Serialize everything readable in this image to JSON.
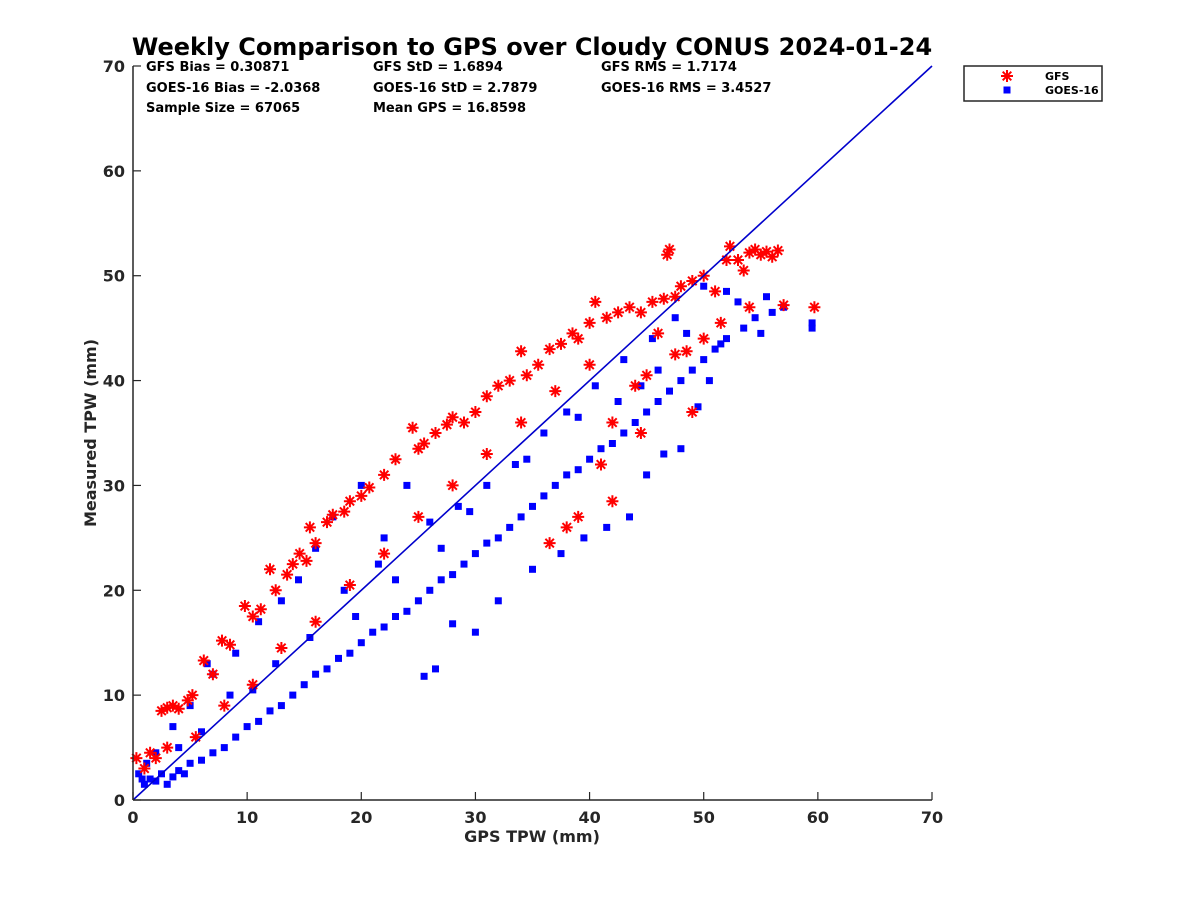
{
  "chart_data": {
    "type": "scatter",
    "title": "Weekly Comparison to GPS over Cloudy CONUS 2024-01-24",
    "xlabel": "GPS TPW (mm)",
    "ylabel": "Measured TPW (mm)",
    "xlim": [
      0,
      70
    ],
    "ylim": [
      0,
      70
    ],
    "xticks": [
      0,
      10,
      20,
      30,
      40,
      50,
      60,
      70
    ],
    "yticks": [
      0,
      10,
      20,
      30,
      40,
      50,
      60,
      70
    ],
    "x_tick_labels": [
      "0",
      "10",
      "20",
      "30",
      "40",
      "50",
      "60",
      "70"
    ],
    "y_tick_labels": [
      "0",
      "10",
      "20",
      "30",
      "40",
      "50",
      "60",
      "70"
    ],
    "grid": false,
    "legend_position": "outside top-right",
    "reference_line": {
      "type": "1:1",
      "x": [
        0,
        70
      ],
      "y": [
        0,
        70
      ],
      "color": "#0000CC"
    },
    "stats": [
      {
        "label": "GFS Bias = 0.30871"
      },
      {
        "label": "GFS StD = 1.6894"
      },
      {
        "label": "GFS RMS = 1.7174"
      },
      {
        "label": "GOES-16 Bias = -2.0368"
      },
      {
        "label": "GOES-16 StD = 2.7879"
      },
      {
        "label": "GOES-16 RMS = 3.4527"
      },
      {
        "label": "Sample Size = 67065"
      },
      {
        "label": "Mean GPS = 16.8598"
      }
    ],
    "series": [
      {
        "name": "GFS",
        "marker": "asterisk",
        "color": "#FF0000",
        "points": [
          [
            0.3,
            4.0
          ],
          [
            1.5,
            4.5
          ],
          [
            2.5,
            8.5
          ],
          [
            3.0,
            8.8
          ],
          [
            3.5,
            9.0
          ],
          [
            4.0,
            8.7
          ],
          [
            4.8,
            9.5
          ],
          [
            5.2,
            10.0
          ],
          [
            6.2,
            13.3
          ],
          [
            7.0,
            12.0
          ],
          [
            7.8,
            15.2
          ],
          [
            8.5,
            14.8
          ],
          [
            9.8,
            18.5
          ],
          [
            10.5,
            17.5
          ],
          [
            11.2,
            18.2
          ],
          [
            12.0,
            22.0
          ],
          [
            12.5,
            20.0
          ],
          [
            13.5,
            21.5
          ],
          [
            14.0,
            22.5
          ],
          [
            14.6,
            23.5
          ],
          [
            15.2,
            22.8
          ],
          [
            15.5,
            26.0
          ],
          [
            16.0,
            24.5
          ],
          [
            17.0,
            26.5
          ],
          [
            17.5,
            27.2
          ],
          [
            18.5,
            27.5
          ],
          [
            19.0,
            28.5
          ],
          [
            20.0,
            29.0
          ],
          [
            20.7,
            29.8
          ],
          [
            22.0,
            31.0
          ],
          [
            23.0,
            32.5
          ],
          [
            24.5,
            35.5
          ],
          [
            25.0,
            33.5
          ],
          [
            25.5,
            34.0
          ],
          [
            26.5,
            35.0
          ],
          [
            27.5,
            35.8
          ],
          [
            28.0,
            36.5
          ],
          [
            29.0,
            36.0
          ],
          [
            30.0,
            37.0
          ],
          [
            31.0,
            38.5
          ],
          [
            32.0,
            39.5
          ],
          [
            33.0,
            40.0
          ],
          [
            34.0,
            42.8
          ],
          [
            34.5,
            40.5
          ],
          [
            35.5,
            41.5
          ],
          [
            36.5,
            43.0
          ],
          [
            37.5,
            43.5
          ],
          [
            38.5,
            44.5
          ],
          [
            39.0,
            44.0
          ],
          [
            40.0,
            45.5
          ],
          [
            40.5,
            47.5
          ],
          [
            41.5,
            46.0
          ],
          [
            42.5,
            46.5
          ],
          [
            43.5,
            47.0
          ],
          [
            44.5,
            46.5
          ],
          [
            45.5,
            47.5
          ],
          [
            46.5,
            47.8
          ],
          [
            47.0,
            52.5
          ],
          [
            46.8,
            52.0
          ],
          [
            47.5,
            48.0
          ],
          [
            48.0,
            49.0
          ],
          [
            49.0,
            49.5
          ],
          [
            50.0,
            50.0
          ],
          [
            51.0,
            48.5
          ],
          [
            52.0,
            51.5
          ],
          [
            52.3,
            52.8
          ],
          [
            53.0,
            51.5
          ],
          [
            53.5,
            50.5
          ],
          [
            54.0,
            52.2
          ],
          [
            54.5,
            52.5
          ],
          [
            55.0,
            52.0
          ],
          [
            55.5,
            52.3
          ],
          [
            56.0,
            51.8
          ],
          [
            56.5,
            52.4
          ],
          [
            54.0,
            47.0
          ],
          [
            57.0,
            47.2
          ],
          [
            59.7,
            47.0
          ],
          [
            49.0,
            37.0
          ],
          [
            36.5,
            24.5
          ],
          [
            38.0,
            26.0
          ],
          [
            39.0,
            27.0
          ],
          [
            42.0,
            28.5
          ],
          [
            41.0,
            32.0
          ],
          [
            44.5,
            35.0
          ],
          [
            47.5,
            42.5
          ],
          [
            48.5,
            42.8
          ],
          [
            46.0,
            44.5
          ],
          [
            50.0,
            44.0
          ],
          [
            51.5,
            45.5
          ],
          [
            44.0,
            39.5
          ],
          [
            45.0,
            40.5
          ],
          [
            42.0,
            36.0
          ],
          [
            1.0,
            3.0
          ],
          [
            2.0,
            4.0
          ],
          [
            3.0,
            5.0
          ],
          [
            5.5,
            6.0
          ],
          [
            8.0,
            9.0
          ],
          [
            10.5,
            11.0
          ],
          [
            13.0,
            14.5
          ],
          [
            16.0,
            17.0
          ],
          [
            19.0,
            20.5
          ],
          [
            22.0,
            23.5
          ],
          [
            25.0,
            27.0
          ],
          [
            28.0,
            30.0
          ],
          [
            31.0,
            33.0
          ],
          [
            34.0,
            36.0
          ],
          [
            37.0,
            39.0
          ],
          [
            40.0,
            41.5
          ]
        ]
      },
      {
        "name": "GOES-16",
        "marker": "square",
        "color": "#0000FF",
        "points": [
          [
            0.5,
            2.5
          ],
          [
            1.0,
            1.5
          ],
          [
            1.5,
            2.0
          ],
          [
            2.0,
            1.8
          ],
          [
            2.5,
            2.5
          ],
          [
            3.0,
            1.5
          ],
          [
            3.5,
            2.2
          ],
          [
            4.0,
            2.8
          ],
          [
            4.5,
            2.5
          ],
          [
            5.0,
            3.5
          ],
          [
            6.0,
            3.8
          ],
          [
            7.0,
            4.5
          ],
          [
            8.0,
            5.0
          ],
          [
            9.0,
            6.0
          ],
          [
            10.0,
            7.0
          ],
          [
            11.0,
            7.5
          ],
          [
            12.0,
            8.5
          ],
          [
            13.0,
            9.0
          ],
          [
            14.0,
            10.0
          ],
          [
            15.0,
            11.0
          ],
          [
            16.0,
            12.0
          ],
          [
            17.0,
            12.5
          ],
          [
            18.0,
            13.5
          ],
          [
            19.0,
            14.0
          ],
          [
            20.0,
            15.0
          ],
          [
            21.0,
            16.0
          ],
          [
            22.0,
            16.5
          ],
          [
            23.0,
            17.5
          ],
          [
            24.0,
            18.0
          ],
          [
            25.0,
            19.0
          ],
          [
            26.0,
            20.0
          ],
          [
            27.0,
            21.0
          ],
          [
            28.0,
            21.5
          ],
          [
            29.0,
            22.5
          ],
          [
            30.0,
            23.5
          ],
          [
            31.0,
            24.5
          ],
          [
            32.0,
            25.0
          ],
          [
            33.0,
            26.0
          ],
          [
            34.0,
            27.0
          ],
          [
            35.0,
            28.0
          ],
          [
            36.0,
            29.0
          ],
          [
            37.0,
            30.0
          ],
          [
            38.0,
            31.0
          ],
          [
            39.0,
            31.5
          ],
          [
            40.0,
            32.5
          ],
          [
            41.0,
            33.5
          ],
          [
            42.0,
            34.0
          ],
          [
            43.0,
            35.0
          ],
          [
            44.0,
            36.0
          ],
          [
            45.0,
            37.0
          ],
          [
            46.0,
            38.0
          ],
          [
            47.0,
            39.0
          ],
          [
            48.0,
            40.0
          ],
          [
            49.0,
            41.0
          ],
          [
            50.0,
            42.0
          ],
          [
            51.0,
            43.0
          ],
          [
            52.0,
            44.0
          ],
          [
            25.5,
            11.8
          ],
          [
            26.5,
            12.5
          ],
          [
            28.0,
            16.8
          ],
          [
            30.0,
            16.0
          ],
          [
            32.0,
            19.0
          ],
          [
            35.0,
            22.0
          ],
          [
            37.5,
            23.5
          ],
          [
            39.5,
            25.0
          ],
          [
            41.5,
            26.0
          ],
          [
            43.5,
            27.0
          ],
          [
            45.0,
            31.0
          ],
          [
            46.5,
            33.0
          ],
          [
            48.0,
            33.5
          ],
          [
            49.5,
            37.5
          ],
          [
            50.5,
            40.0
          ],
          [
            51.5,
            43.5
          ],
          [
            53.5,
            45.0
          ],
          [
            55.0,
            44.5
          ],
          [
            57.0,
            47.0
          ],
          [
            59.5,
            45.5
          ],
          [
            59.5,
            45.0
          ],
          [
            55.5,
            48.0
          ],
          [
            52.0,
            48.5
          ],
          [
            50.0,
            49.0
          ],
          [
            53.0,
            47.5
          ],
          [
            54.5,
            46.0
          ],
          [
            56.0,
            46.5
          ],
          [
            47.5,
            46.0
          ],
          [
            45.5,
            44.0
          ],
          [
            43.0,
            42.0
          ],
          [
            40.5,
            39.5
          ],
          [
            38.0,
            37.0
          ],
          [
            36.0,
            35.0
          ],
          [
            33.5,
            32.0
          ],
          [
            31.0,
            30.0
          ],
          [
            28.5,
            28.0
          ],
          [
            26.0,
            26.5
          ],
          [
            24.0,
            30.0
          ],
          [
            22.0,
            25.0
          ],
          [
            20.0,
            30.0
          ],
          [
            17.5,
            27.0
          ],
          [
            16.0,
            24.0
          ],
          [
            14.5,
            21.0
          ],
          [
            13.0,
            19.0
          ],
          [
            11.0,
            17.0
          ],
          [
            9.0,
            14.0
          ],
          [
            7.0,
            12.0
          ],
          [
            5.0,
            9.0
          ],
          [
            3.5,
            7.0
          ],
          [
            2.0,
            4.5
          ],
          [
            6.5,
            13.0
          ],
          [
            8.5,
            10.0
          ],
          [
            12.5,
            13.0
          ],
          [
            18.5,
            20.0
          ],
          [
            21.5,
            22.5
          ],
          [
            27.0,
            24.0
          ],
          [
            29.5,
            27.5
          ],
          [
            34.5,
            32.5
          ],
          [
            39.0,
            36.5
          ],
          [
            42.5,
            38.0
          ],
          [
            44.5,
            39.5
          ],
          [
            46.0,
            41.0
          ],
          [
            48.5,
            44.5
          ],
          [
            23.0,
            21.0
          ],
          [
            19.5,
            17.5
          ],
          [
            15.5,
            15.5
          ],
          [
            10.5,
            10.5
          ],
          [
            6.0,
            6.5
          ],
          [
            4.0,
            5.0
          ],
          [
            1.2,
            3.5
          ],
          [
            0.8,
            2.0
          ]
        ]
      }
    ]
  }
}
